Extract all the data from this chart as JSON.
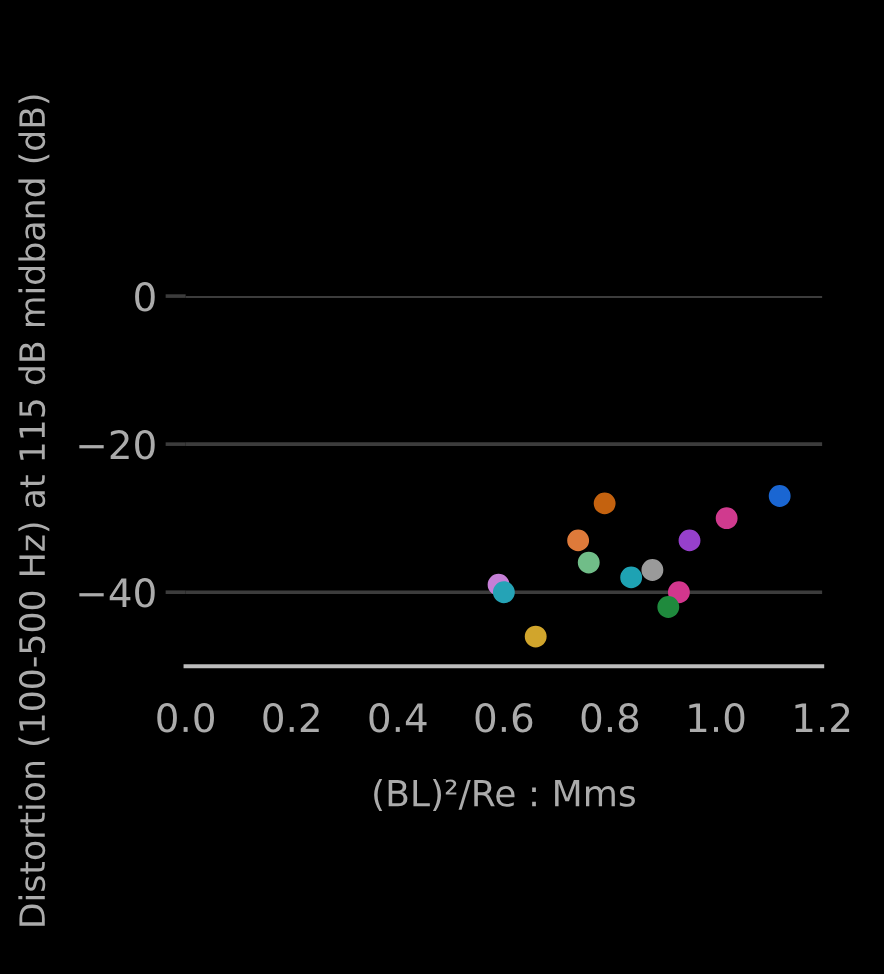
{
  "chart_data": {
    "type": "scatter",
    "xlabel": "(BL)²/Re : Mms",
    "ylabel": "Distortion (100-500 Hz) at 115 dB midband (dB)",
    "x": [
      0.59,
      0.6,
      0.66,
      0.74,
      0.79,
      0.76,
      0.84,
      0.88,
      0.95,
      0.93,
      0.91,
      1.02,
      1.12
    ],
    "values": [
      -39,
      -40,
      -46,
      -33,
      -28,
      -36,
      -38,
      -37,
      -33,
      -40,
      -42,
      -30,
      -27
    ],
    "colors": [
      "#c57fd6",
      "#25a3b6",
      "#d1a52c",
      "#de7a3a",
      "#c4620f",
      "#70bd88",
      "#1ea2b3",
      "#9a9a9a",
      "#9640cc",
      "#d3368d",
      "#1f8a3d",
      "#d03a8e",
      "#1a66d2"
    ],
    "xlim": [
      0,
      1.2
    ],
    "ylim": [
      -50,
      0
    ],
    "xticks": [
      {
        "value": 0,
        "label": "0.0"
      },
      0.2,
      0.4,
      0.6,
      0.8,
      {
        "value": 1,
        "label": "1.0"
      },
      1.2
    ],
    "yticks": [
      {
        "value": -40,
        "label": "−40"
      },
      {
        "value": -20,
        "label": "−20"
      },
      0
    ],
    "grid": "y",
    "marker": "circle"
  }
}
